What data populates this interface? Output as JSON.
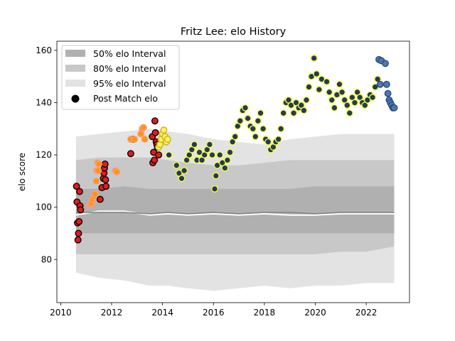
{
  "chart_data": {
    "type": "scatter",
    "title": "Fritz Lee: elo History",
    "xlabel": "",
    "ylabel": "elo score",
    "xlim": [
      2009.85,
      2023.7
    ],
    "ylim": [
      63.5,
      163.5
    ],
    "xticks": [
      2010,
      2012,
      2014,
      2016,
      2018,
      2020,
      2022
    ],
    "yticks": [
      80,
      100,
      120,
      140,
      160
    ],
    "grid": false,
    "legend_placement": "top-left",
    "legend": [
      {
        "label": "50% elo Interval",
        "kind": "band",
        "color": "#b0b0b0"
      },
      {
        "label": "80% elo Interval",
        "kind": "band",
        "color": "#c8c8c8"
      },
      {
        "label": "95% elo Interval",
        "kind": "band",
        "color": "#e3e3e3"
      },
      {
        "label": "Post Match elo",
        "kind": "marker",
        "color": "#000000"
      }
    ],
    "bands": {
      "x": [
        2010.6,
        2011.5,
        2012.5,
        2013.5,
        2014.2,
        2015,
        2016,
        2017,
        2018,
        2019,
        2020,
        2021,
        2022,
        2023.1
      ],
      "p95_hi": [
        127,
        128,
        129,
        130,
        129,
        128,
        126,
        125,
        124,
        126,
        127,
        128,
        128,
        128
      ],
      "p95_lo": [
        75,
        73,
        72,
        70,
        70,
        69,
        68,
        69,
        70,
        69,
        70,
        70,
        71,
        71
      ],
      "p80_hi": [
        118,
        119,
        119,
        119,
        118,
        117,
        116,
        116,
        117,
        118,
        118,
        118,
        118,
        118
      ],
      "p80_lo": [
        82,
        82,
        82,
        82,
        82,
        82,
        82,
        82,
        82,
        82,
        82,
        83,
        83,
        85
      ],
      "p50_hi": [
        107,
        107,
        108,
        107,
        107,
        107,
        107,
        107,
        107,
        107,
        108,
        108,
        108,
        108
      ],
      "p50_lo": [
        90,
        90,
        90,
        90,
        90,
        90,
        90,
        90,
        90,
        90,
        90,
        90,
        90,
        90
      ],
      "median": [
        98,
        98,
        98,
        97.5,
        98,
        97.5,
        98,
        97.5,
        98,
        98,
        97.5,
        98,
        98,
        98
      ],
      "mean": [
        97,
        98.5,
        98.5,
        97,
        97.5,
        97,
        97.5,
        97,
        97.5,
        97,
        97,
        97.5,
        97.5,
        97.5
      ]
    },
    "series": [
      {
        "marker_fill": "#e31a1c",
        "marker_edge": "#000000",
        "x": [
          2010.62,
          2010.64,
          2010.66,
          2010.68,
          2010.7,
          2010.72,
          2010.74,
          2010.76,
          2010.78,
          2011.55,
          2011.62,
          2011.68,
          2011.7,
          2011.72,
          2011.74,
          2011.76,
          2011.78,
          2012.75,
          2012.85,
          2013.6,
          2013.62,
          2013.65,
          2013.68,
          2013.7,
          2013.72,
          2013.75,
          2013.78,
          2013.8,
          2013.85
        ],
        "y": [
          108,
          102,
          94,
          87.5,
          90,
          94.5,
          106,
          100.5,
          99,
          103,
          107.5,
          111,
          113,
          115,
          116.5,
          110.5,
          108,
          120.5,
          126,
          127,
          117,
          121,
          118,
          133,
          128.5,
          125,
          124,
          123,
          120
        ]
      },
      {
        "marker_fill": "#ff9800",
        "marker_edge": "#fb9a99",
        "x": [
          2011.15,
          2011.2,
          2011.25,
          2011.3,
          2011.35,
          2011.4,
          2011.42,
          2011.45,
          2011.48,
          2011.5,
          2012.15,
          2012.2,
          2012.75,
          2012.9,
          2013.15,
          2013.2,
          2013.25,
          2013.3
        ],
        "y": [
          101,
          101.5,
          103,
          104,
          105,
          110,
          114,
          117,
          114,
          116.5,
          114,
          113.5,
          126,
          126,
          128,
          130,
          130.5,
          126
        ]
      },
      {
        "marker_fill": "#ffed6f",
        "marker_edge": "#c8b400",
        "x": [
          2013.85,
          2013.9,
          2013.95,
          2014.0,
          2014.05,
          2014.1,
          2014.15,
          2014.2
        ],
        "y": [
          123,
          124,
          126,
          128,
          129.5,
          127,
          125,
          126
        ]
      },
      {
        "marker_fill": "#1f3c5a",
        "marker_edge": "#ffff33",
        "x": [
          2014.25,
          2014.55,
          2014.65,
          2014.75,
          2014.85,
          2014.95,
          2015.05,
          2015.15,
          2015.25,
          2015.35,
          2015.45,
          2015.55,
          2015.65,
          2015.75,
          2015.85,
          2015.95,
          2016.05,
          2016.1,
          2016.15,
          2016.25,
          2016.35,
          2016.45,
          2016.55,
          2016.65,
          2016.75,
          2016.85,
          2016.95,
          2017.05,
          2017.15,
          2017.25,
          2017.35,
          2017.45,
          2017.55,
          2017.65,
          2017.75,
          2017.85,
          2017.95,
          2018.05,
          2018.15,
          2018.25,
          2018.35,
          2018.45,
          2018.55,
          2018.65,
          2018.75,
          2018.85,
          2018.95,
          2019.05,
          2019.15,
          2019.25,
          2019.35,
          2019.45,
          2019.55,
          2019.65,
          2019.75,
          2019.85,
          2019.95,
          2020.05,
          2020.15,
          2020.25,
          2020.45,
          2020.55,
          2020.65,
          2020.75,
          2020.85,
          2020.95,
          2021.05,
          2021.15,
          2021.25,
          2021.35,
          2021.45,
          2021.55,
          2021.65,
          2021.75,
          2021.85,
          2021.95,
          2022.05,
          2022.15,
          2022.25,
          2022.35,
          2022.45
        ],
        "y": [
          120,
          116,
          113,
          111,
          114,
          118,
          120,
          122,
          124,
          118,
          121,
          118,
          120,
          122,
          124,
          120,
          107,
          112,
          116,
          120,
          117,
          115,
          118,
          121,
          125,
          127,
          131,
          133,
          137,
          138,
          134,
          131,
          130,
          127,
          133,
          136,
          130,
          126,
          125,
          122,
          123,
          125,
          126,
          130,
          136,
          140,
          141,
          139,
          136,
          140,
          138,
          139,
          137,
          141,
          146,
          150,
          157,
          151,
          145,
          149,
          148,
          144,
          141,
          138,
          143,
          147,
          144,
          141,
          139,
          136,
          142,
          140,
          144,
          142,
          140,
          139,
          141,
          143,
          142,
          146,
          149
        ]
      },
      {
        "marker_fill": "#4a78b5",
        "marker_edge": "#2c4a70",
        "x": [
          2022.5,
          2022.55,
          2022.6,
          2022.75,
          2022.8,
          2022.85,
          2022.9,
          2022.95,
          2023.0,
          2023.05,
          2023.1
        ],
        "y": [
          156.5,
          147,
          156,
          155,
          147,
          143.5,
          141,
          140,
          139,
          138,
          138
        ]
      }
    ]
  }
}
